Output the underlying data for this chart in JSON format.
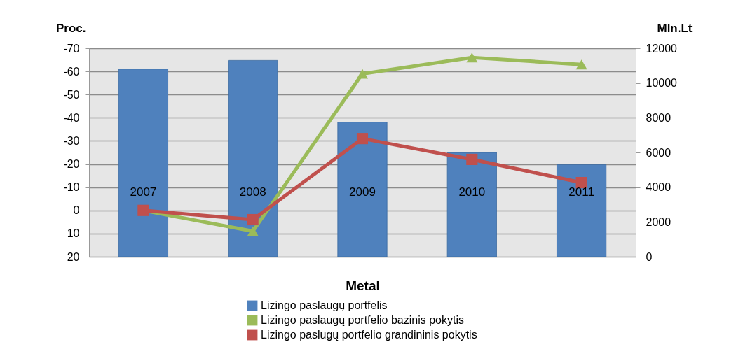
{
  "chart_data": {
    "type": "bar",
    "xlabel": "Metai",
    "ylabel": "Proc.",
    "y2label": "Mln.Lt",
    "categories": [
      "2007",
      "2008",
      "2009",
      "2010",
      "2011"
    ],
    "series": [
      {
        "name": "Lizingo paslaugų portfelis",
        "axis": "y2",
        "color": "#4f81bd",
        "values": [
          10800,
          11300,
          7750,
          6000,
          5300
        ]
      },
      {
        "name": "Lizingo paslaugų portfelio bazinis pokytis",
        "type": "line",
        "color": "#9bbb59",
        "marker": "triangle",
        "values": [
          0,
          9,
          -59,
          -66,
          -63
        ]
      },
      {
        "name": "Lizingo paslugų portfelio grandininis pokytis",
        "type": "line",
        "color": "#c0504d",
        "marker": "square",
        "values": [
          0,
          4,
          -31,
          -22,
          -12
        ]
      }
    ],
    "ylim": [
      20,
      -70
    ],
    "yticks": [
      -70,
      -60,
      -50,
      -40,
      -30,
      -20,
      -10,
      0,
      10,
      20
    ],
    "y2lim": [
      0,
      12000
    ],
    "y2ticks": [
      0,
      2000,
      4000,
      6000,
      8000,
      10000,
      12000
    ],
    "grid": "y",
    "legend": "bottom"
  }
}
